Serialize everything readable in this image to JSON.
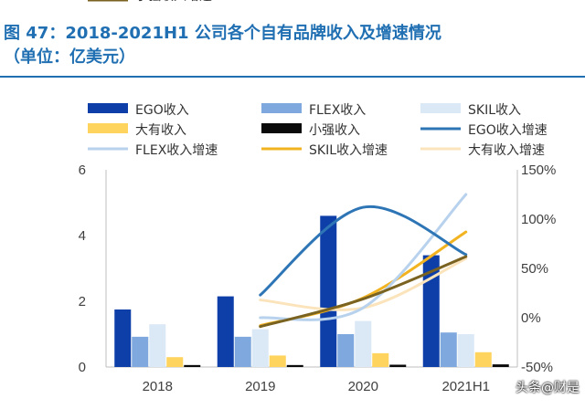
{
  "header": {
    "title_line1": "图 47：2018-2021H1 公司各个自有品牌收入及增速情况",
    "title_line2": "（单位：亿美元）"
  },
  "watermark": "头条@财是",
  "chart_data": {
    "type": "bar",
    "categories": [
      "2018",
      "2019",
      "2020",
      "2021H1"
    ],
    "ylim": [
      0,
      6
    ],
    "yticks": [
      "0",
      "2",
      "4",
      "6"
    ],
    "y2lim": [
      -50,
      150
    ],
    "y2ticks": [
      "-50%",
      "0%",
      "50%",
      "100%",
      "150%"
    ],
    "legend_position": "top",
    "series": [
      {
        "name": "EGO收入",
        "kind": "bar",
        "axis": "left",
        "color": "#0e3fa8",
        "values": [
          1.75,
          2.15,
          4.6,
          3.4
        ]
      },
      {
        "name": "FLEX收入",
        "kind": "bar",
        "axis": "left",
        "color": "#7fa8de",
        "values": [
          0.92,
          0.92,
          1.0,
          1.05
        ]
      },
      {
        "name": "SKIL收入",
        "kind": "bar",
        "axis": "left",
        "color": "#dbe8f6",
        "values": [
          1.3,
          1.15,
          1.4,
          1.0
        ]
      },
      {
        "name": "大有收入",
        "kind": "bar",
        "axis": "left",
        "color": "#ffd45e",
        "values": [
          0.3,
          0.35,
          0.42,
          0.45
        ]
      },
      {
        "name": "小强收入",
        "kind": "bar",
        "axis": "left",
        "color": "#0a0a0a",
        "values": [
          0.06,
          0.06,
          0.07,
          0.08
        ]
      },
      {
        "name": "EGO收入增速",
        "kind": "line",
        "axis": "right",
        "color": "#2e75b6",
        "values": [
          null,
          23,
          112,
          64
        ]
      },
      {
        "name": "FLEX收入增速",
        "kind": "line",
        "axis": "right",
        "color": "#b8d2ee",
        "values": [
          null,
          0,
          10,
          125
        ]
      },
      {
        "name": "SKIL收入增速",
        "kind": "line",
        "axis": "right",
        "color": "#f2b320",
        "values": [
          null,
          -8,
          20,
          87
        ]
      },
      {
        "name": "大有收入增速",
        "kind": "line",
        "axis": "right",
        "color": "#fbe4bc",
        "values": [
          null,
          18,
          10,
          60
        ]
      },
      {
        "name": "小强收入增速",
        "kind": "line",
        "axis": "right",
        "color": "#7a6220",
        "values": [
          null,
          -9,
          19,
          62
        ]
      }
    ]
  }
}
